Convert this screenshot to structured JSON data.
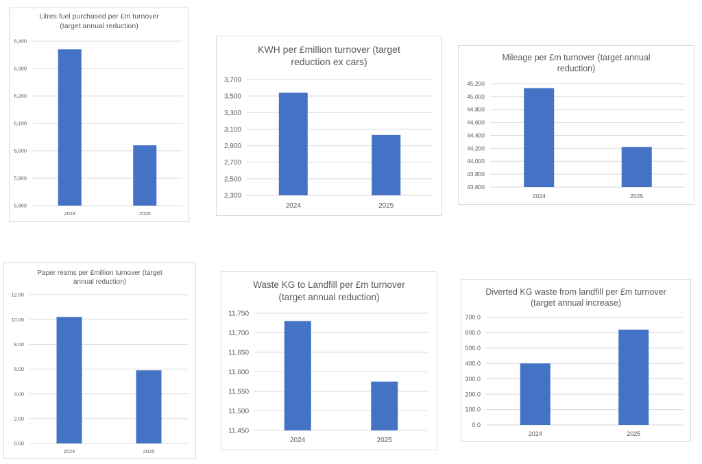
{
  "colors": {
    "bar": "#4472c4",
    "grid": "#d9d9d9",
    "text": "#595959",
    "border": "#d9d9d9"
  },
  "chart_data": [
    {
      "type": "bar",
      "title": "Litres fuel purchased per £m turnover (target annual reduction)",
      "categories": [
        "2024",
        "2025"
      ],
      "values": [
        6370,
        6020
      ],
      "ylim": [
        5800,
        6400
      ],
      "yticks": [
        5800,
        5900,
        6000,
        6100,
        6200,
        6300,
        6400
      ],
      "yticklabels": [
        "5,800",
        "5,900",
        "6,000",
        "6,100",
        "6,200",
        "6,300",
        "6,400"
      ],
      "grid": true,
      "legend": "none"
    },
    {
      "type": "bar",
      "title": "KWH per £million turnover (target reduction ex cars)",
      "categories": [
        "2024",
        "2025"
      ],
      "values": [
        3540,
        3030
      ],
      "ylim": [
        2300,
        3700
      ],
      "yticks": [
        2300,
        2500,
        2700,
        2900,
        3100,
        3300,
        3500,
        3700
      ],
      "yticklabels": [
        "2,300",
        "2,500",
        "2,700",
        "2,900",
        "3,100",
        "3,300",
        "3,500",
        "3,700"
      ],
      "grid": true,
      "legend": "none"
    },
    {
      "type": "bar",
      "title": "Mileage per £m turnover (target annual reduction)",
      "categories": [
        "2024",
        "2025"
      ],
      "values": [
        45130,
        44220
      ],
      "ylim": [
        43600,
        45200
      ],
      "yticks": [
        43600,
        43800,
        44000,
        44200,
        44400,
        44600,
        44800,
        45000,
        45200
      ],
      "yticklabels": [
        "43,600",
        "43,800",
        "44,000",
        "44,200",
        "44,400",
        "44,600",
        "44,800",
        "45,000",
        "45,200"
      ],
      "grid": true,
      "legend": "none"
    },
    {
      "type": "bar",
      "title": "Paper reams per £million turnover (target annual reduction)",
      "categories": [
        "2024",
        "2025"
      ],
      "values": [
        10.2,
        5.9
      ],
      "ylim": [
        0,
        12
      ],
      "yticks": [
        0,
        2,
        4,
        6,
        8,
        10,
        12
      ],
      "yticklabels": [
        "0.00",
        "2.00",
        "4.00",
        "6.00",
        "8.00",
        "10.00",
        "12.00"
      ],
      "grid": true,
      "legend": "none"
    },
    {
      "type": "bar",
      "title": "Waste KG to Landfill per £m turnover (target annual reduction)",
      "categories": [
        "2024",
        "2025"
      ],
      "values": [
        11730,
        11575
      ],
      "ylim": [
        11450,
        11750
      ],
      "yticks": [
        11450,
        11500,
        11550,
        11600,
        11650,
        11700,
        11750
      ],
      "yticklabels": [
        "11,450",
        "11,500",
        "11,550",
        "11,600",
        "11,650",
        "11,700",
        "11,750"
      ],
      "grid": true,
      "legend": "none"
    },
    {
      "type": "bar",
      "title": "Diverted KG waste from landfill per £m turnover (target annual increase)",
      "categories": [
        "2024",
        "2025"
      ],
      "values": [
        400,
        620
      ],
      "ylim": [
        0,
        700
      ],
      "yticks": [
        0,
        100,
        200,
        300,
        400,
        500,
        600,
        700
      ],
      "yticklabels": [
        "0.0",
        "100.0",
        "200.0",
        "300.0",
        "400.0",
        "500.0",
        "600.0",
        "700.0"
      ],
      "grid": true,
      "legend": "none"
    }
  ]
}
